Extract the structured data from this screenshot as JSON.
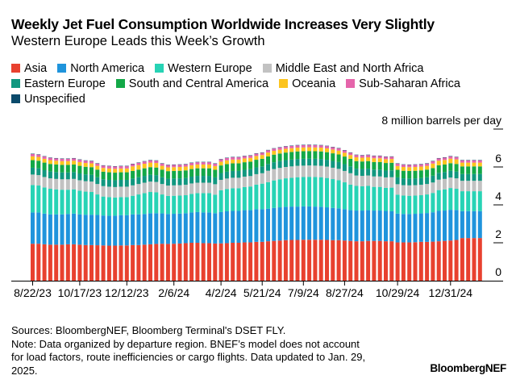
{
  "title": "Weekly Jet Fuel Consumption Worldwide Increases Very Slightly",
  "subtitle": "Western Europe Leads this Week’s Growth",
  "footer": {
    "sources": "Sources: BloombergNEF, Bloomberg Terminal's DSET FLY.",
    "note": "Note: Data organized by departure region. BNEF’s model does not account for load factors, route inefficiencies or cargo flights. Data updated to Jan. 29, 2025."
  },
  "logo": "BloombergNEF",
  "chart_data": {
    "type": "bar",
    "stacked": true,
    "ylabel": "8 million barrels per day",
    "ylim": [
      0,
      8
    ],
    "yticks": [
      "0",
      "2",
      "4",
      "6",
      "8 million barrels per day"
    ],
    "ytick_values": [
      0,
      2,
      4,
      6,
      8
    ],
    "grid": false,
    "legend_position": "top-left",
    "x_tick_labels": [
      "8/22/23",
      "10/17/23",
      "12/12/23",
      "2/6/24",
      "4/2/24",
      "5/21/24",
      "7/9/24",
      "8/27/24",
      "10/29/24",
      "12/31/24"
    ],
    "x_tick_indices": [
      0,
      8,
      16,
      24,
      32,
      39,
      46,
      53,
      62,
      71
    ],
    "series": [
      {
        "name": "Asia",
        "color": "#e8412f",
        "values": [
          1.95,
          1.95,
          1.92,
          1.9,
          1.9,
          1.9,
          1.92,
          1.92,
          1.9,
          1.88,
          1.88,
          1.87,
          1.86,
          1.85,
          1.85,
          1.86,
          1.86,
          1.88,
          1.88,
          1.9,
          1.92,
          1.94,
          1.95,
          1.94,
          1.95,
          1.96,
          1.98,
          2.0,
          2.0,
          1.98,
          1.98,
          1.96,
          1.97,
          1.98,
          2.0,
          2.0,
          2.02,
          2.02,
          2.05,
          2.05,
          2.08,
          2.1,
          2.12,
          2.14,
          2.15,
          2.15,
          2.16,
          2.16,
          2.16,
          2.16,
          2.15,
          2.14,
          2.14,
          2.12,
          2.1,
          2.08,
          2.08,
          2.1,
          2.1,
          2.1,
          2.08,
          2.08,
          2.02,
          2.02,
          2.02,
          2.03,
          2.05,
          2.05,
          2.06,
          2.08,
          2.1,
          2.12,
          2.15,
          2.25,
          2.25,
          2.25,
          2.25
        ]
      },
      {
        "name": "North America",
        "color": "#1f94dc",
        "values": [
          1.65,
          1.65,
          1.62,
          1.6,
          1.6,
          1.6,
          1.6,
          1.62,
          1.6,
          1.6,
          1.6,
          1.6,
          1.58,
          1.58,
          1.58,
          1.6,
          1.6,
          1.62,
          1.62,
          1.62,
          1.64,
          1.62,
          1.6,
          1.58,
          1.58,
          1.58,
          1.58,
          1.6,
          1.62,
          1.62,
          1.62,
          1.6,
          1.65,
          1.68,
          1.68,
          1.68,
          1.7,
          1.7,
          1.72,
          1.72,
          1.72,
          1.74,
          1.75,
          1.76,
          1.76,
          1.76,
          1.76,
          1.76,
          1.75,
          1.74,
          1.72,
          1.7,
          1.68,
          1.65,
          1.62,
          1.62,
          1.62,
          1.62,
          1.6,
          1.6,
          1.6,
          1.58,
          1.52,
          1.5,
          1.5,
          1.5,
          1.5,
          1.52,
          1.55,
          1.6,
          1.6,
          1.62,
          1.58,
          1.42,
          1.42,
          1.42,
          1.42
        ]
      },
      {
        "name": "Western Europe",
        "color": "#27d3b5",
        "values": [
          1.45,
          1.42,
          1.38,
          1.35,
          1.32,
          1.3,
          1.28,
          1.28,
          1.25,
          1.22,
          1.2,
          1.08,
          1.0,
          0.98,
          0.96,
          0.95,
          0.95,
          0.98,
          1.05,
          1.1,
          1.12,
          1.1,
          1.0,
          0.95,
          0.95,
          0.95,
          0.95,
          0.98,
          1.0,
          1.02,
          1.02,
          0.98,
          1.15,
          1.18,
          1.2,
          1.2,
          1.22,
          1.25,
          1.3,
          1.35,
          1.4,
          1.45,
          1.48,
          1.5,
          1.52,
          1.55,
          1.55,
          1.56,
          1.56,
          1.56,
          1.55,
          1.52,
          1.48,
          1.42,
          1.35,
          1.3,
          1.28,
          1.28,
          1.25,
          1.25,
          1.22,
          1.25,
          1.0,
          0.97,
          0.96,
          0.96,
          0.96,
          0.98,
          1.02,
          1.1,
          1.12,
          1.15,
          1.12,
          1.05,
          1.05,
          1.05,
          1.05
        ]
      },
      {
        "name": "Middle East and North Africa",
        "color": "#c2c2c2",
        "values": [
          0.55,
          0.55,
          0.55,
          0.55,
          0.55,
          0.55,
          0.55,
          0.55,
          0.55,
          0.55,
          0.55,
          0.55,
          0.55,
          0.55,
          0.55,
          0.55,
          0.55,
          0.55,
          0.55,
          0.55,
          0.55,
          0.55,
          0.55,
          0.55,
          0.55,
          0.55,
          0.55,
          0.55,
          0.55,
          0.55,
          0.55,
          0.55,
          0.55,
          0.55,
          0.55,
          0.55,
          0.55,
          0.55,
          0.55,
          0.55,
          0.6,
          0.6,
          0.6,
          0.6,
          0.6,
          0.6,
          0.6,
          0.6,
          0.6,
          0.6,
          0.6,
          0.6,
          0.6,
          0.6,
          0.6,
          0.55,
          0.55,
          0.55,
          0.55,
          0.55,
          0.55,
          0.55,
          0.55,
          0.55,
          0.55,
          0.55,
          0.55,
          0.55,
          0.55,
          0.55,
          0.55,
          0.55,
          0.55,
          0.55,
          0.55,
          0.55,
          0.55
        ]
      },
      {
        "name": "Eastern Europe",
        "color": "#10977f",
        "values": [
          0.36,
          0.36,
          0.36,
          0.36,
          0.36,
          0.36,
          0.36,
          0.36,
          0.36,
          0.36,
          0.36,
          0.36,
          0.36,
          0.36,
          0.36,
          0.36,
          0.36,
          0.36,
          0.36,
          0.36,
          0.36,
          0.36,
          0.36,
          0.36,
          0.36,
          0.36,
          0.36,
          0.36,
          0.36,
          0.36,
          0.36,
          0.36,
          0.36,
          0.36,
          0.36,
          0.36,
          0.36,
          0.36,
          0.36,
          0.36,
          0.36,
          0.36,
          0.36,
          0.36,
          0.36,
          0.36,
          0.36,
          0.36,
          0.36,
          0.36,
          0.36,
          0.36,
          0.36,
          0.36,
          0.36,
          0.36,
          0.36,
          0.36,
          0.36,
          0.36,
          0.36,
          0.36,
          0.36,
          0.36,
          0.36,
          0.36,
          0.36,
          0.36,
          0.36,
          0.36,
          0.36,
          0.36,
          0.36,
          0.36,
          0.36,
          0.36,
          0.36
        ]
      },
      {
        "name": "South and Central America",
        "color": "#13a847",
        "values": [
          0.4,
          0.4,
          0.4,
          0.4,
          0.4,
          0.4,
          0.4,
          0.4,
          0.4,
          0.4,
          0.4,
          0.4,
          0.4,
          0.4,
          0.4,
          0.4,
          0.4,
          0.4,
          0.4,
          0.4,
          0.4,
          0.4,
          0.4,
          0.4,
          0.4,
          0.4,
          0.4,
          0.4,
          0.4,
          0.4,
          0.4,
          0.4,
          0.4,
          0.4,
          0.4,
          0.4,
          0.4,
          0.4,
          0.4,
          0.4,
          0.4,
          0.4,
          0.4,
          0.4,
          0.4,
          0.4,
          0.4,
          0.4,
          0.4,
          0.4,
          0.4,
          0.4,
          0.4,
          0.4,
          0.4,
          0.4,
          0.4,
          0.4,
          0.4,
          0.4,
          0.4,
          0.4,
          0.4,
          0.4,
          0.4,
          0.4,
          0.4,
          0.4,
          0.4,
          0.4,
          0.4,
          0.4,
          0.4,
          0.4,
          0.4,
          0.4,
          0.4
        ]
      },
      {
        "name": "Oceania",
        "color": "#fcc41f",
        "values": [
          0.2,
          0.2,
          0.2,
          0.2,
          0.2,
          0.2,
          0.2,
          0.2,
          0.2,
          0.2,
          0.2,
          0.2,
          0.2,
          0.2,
          0.2,
          0.2,
          0.2,
          0.24,
          0.24,
          0.24,
          0.24,
          0.24,
          0.2,
          0.2,
          0.2,
          0.2,
          0.2,
          0.2,
          0.2,
          0.2,
          0.2,
          0.2,
          0.2,
          0.2,
          0.2,
          0.2,
          0.2,
          0.2,
          0.2,
          0.2,
          0.2,
          0.2,
          0.2,
          0.2,
          0.2,
          0.2,
          0.2,
          0.2,
          0.2,
          0.2,
          0.2,
          0.2,
          0.2,
          0.2,
          0.2,
          0.2,
          0.2,
          0.2,
          0.2,
          0.2,
          0.2,
          0.2,
          0.2,
          0.2,
          0.2,
          0.2,
          0.2,
          0.2,
          0.24,
          0.24,
          0.24,
          0.24,
          0.24,
          0.2,
          0.2,
          0.2,
          0.2
        ]
      },
      {
        "name": "Sub-Saharan Africa",
        "color": "#e565ab",
        "values": [
          0.12,
          0.12,
          0.12,
          0.12,
          0.12,
          0.12,
          0.12,
          0.12,
          0.12,
          0.12,
          0.12,
          0.12,
          0.12,
          0.12,
          0.12,
          0.12,
          0.12,
          0.12,
          0.12,
          0.12,
          0.12,
          0.12,
          0.12,
          0.12,
          0.12,
          0.12,
          0.12,
          0.12,
          0.12,
          0.12,
          0.12,
          0.12,
          0.12,
          0.12,
          0.12,
          0.12,
          0.12,
          0.12,
          0.12,
          0.12,
          0.12,
          0.12,
          0.12,
          0.12,
          0.12,
          0.12,
          0.12,
          0.12,
          0.12,
          0.12,
          0.12,
          0.12,
          0.12,
          0.12,
          0.12,
          0.12,
          0.12,
          0.12,
          0.12,
          0.12,
          0.12,
          0.12,
          0.12,
          0.12,
          0.12,
          0.12,
          0.12,
          0.12,
          0.12,
          0.12,
          0.12,
          0.12,
          0.12,
          0.12,
          0.12,
          0.12,
          0.12
        ]
      },
      {
        "name": "Unspecified",
        "color": "#0b4a6b",
        "values": [
          0.02,
          0.02,
          0.02,
          0.02,
          0.02,
          0.02,
          0.02,
          0.02,
          0.02,
          0.02,
          0.02,
          0.02,
          0.02,
          0.02,
          0.02,
          0.02,
          0.02,
          0.02,
          0.02,
          0.02,
          0.02,
          0.02,
          0.02,
          0.02,
          0.02,
          0.02,
          0.02,
          0.02,
          0.02,
          0.02,
          0.02,
          0.02,
          0.02,
          0.02,
          0.02,
          0.02,
          0.02,
          0.02,
          0.02,
          0.02,
          0.02,
          0.02,
          0.02,
          0.02,
          0.02,
          0.02,
          0.02,
          0.02,
          0.02,
          0.02,
          0.02,
          0.02,
          0.02,
          0.02,
          0.02,
          0.02,
          0.02,
          0.02,
          0.02,
          0.02,
          0.02,
          0.02,
          0.02,
          0.02,
          0.02,
          0.02,
          0.02,
          0.02,
          0.02,
          0.02,
          0.02,
          0.02,
          0.02,
          0.02,
          0.02,
          0.02,
          0.02
        ]
      }
    ]
  }
}
